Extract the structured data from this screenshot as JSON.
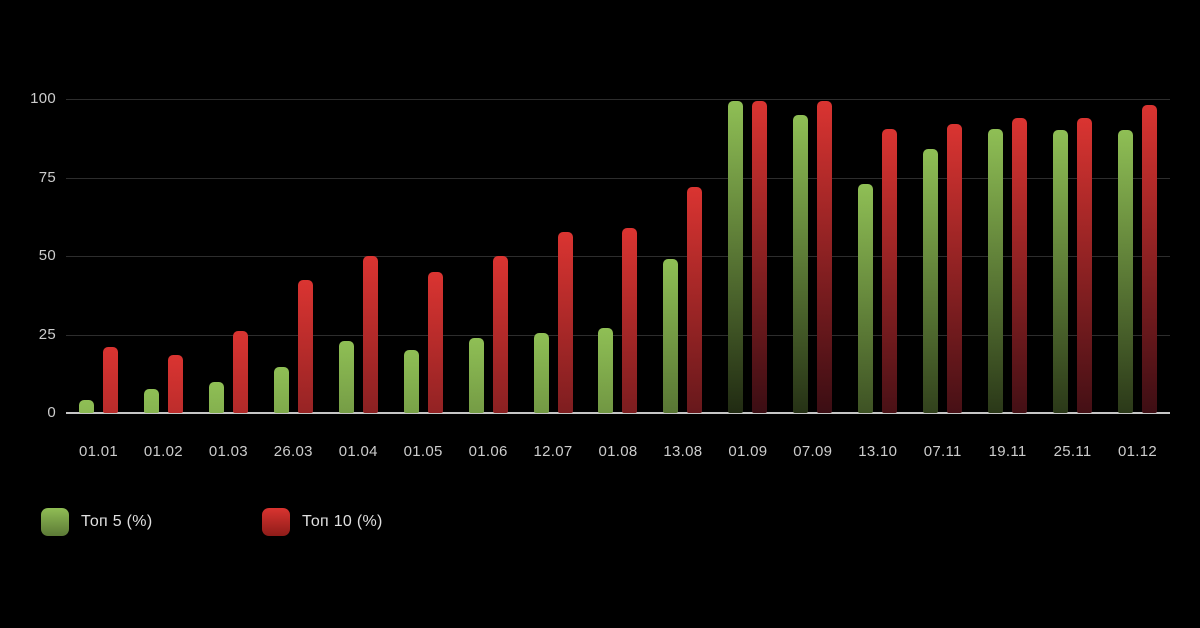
{
  "background": "#000000",
  "chart_data": {
    "type": "bar",
    "title": "",
    "xlabel": "",
    "ylabel": "",
    "ylim": [
      0,
      100
    ],
    "yticks": [
      0,
      25,
      50,
      75,
      100
    ],
    "grid": true,
    "legend_position": "bottom-left",
    "categories": [
      "01.01",
      "01.02",
      "01.03",
      "26.03",
      "01.04",
      "01.05",
      "01.06",
      "12.07",
      "01.08",
      "13.08",
      "01.09",
      "07.09",
      "13.10",
      "07.11",
      "19.11",
      "25.11",
      "01.12"
    ],
    "series": [
      {
        "name": "Топ 5 (%)",
        "color_top": "#8fbf55",
        "color_bottom": "#202a12",
        "values": [
          4,
          7.5,
          10,
          14.5,
          23,
          20,
          24,
          25.5,
          27,
          49,
          99.5,
          95,
          73,
          84,
          90.5,
          90,
          90
        ]
      },
      {
        "name": "Топ 10 (%)",
        "color_top": "#da3431",
        "color_bottom": "#3a0d13",
        "values": [
          21,
          18.5,
          26,
          42.5,
          50,
          45,
          50,
          57.5,
          59,
          72,
          99.5,
          99.5,
          90.5,
          92,
          94,
          94,
          98
        ]
      }
    ]
  },
  "legend": {
    "top5_label": "Топ 5 (%)",
    "top10_label": "Топ 10 (%)"
  },
  "colors": {
    "grid_line": "#2d2d2d",
    "baseline": "#c6c6c6",
    "tick_text": "#cccccc",
    "legend_text": "#e0e0e0",
    "green_top": "#8fbf55",
    "red_top": "#da3431"
  }
}
